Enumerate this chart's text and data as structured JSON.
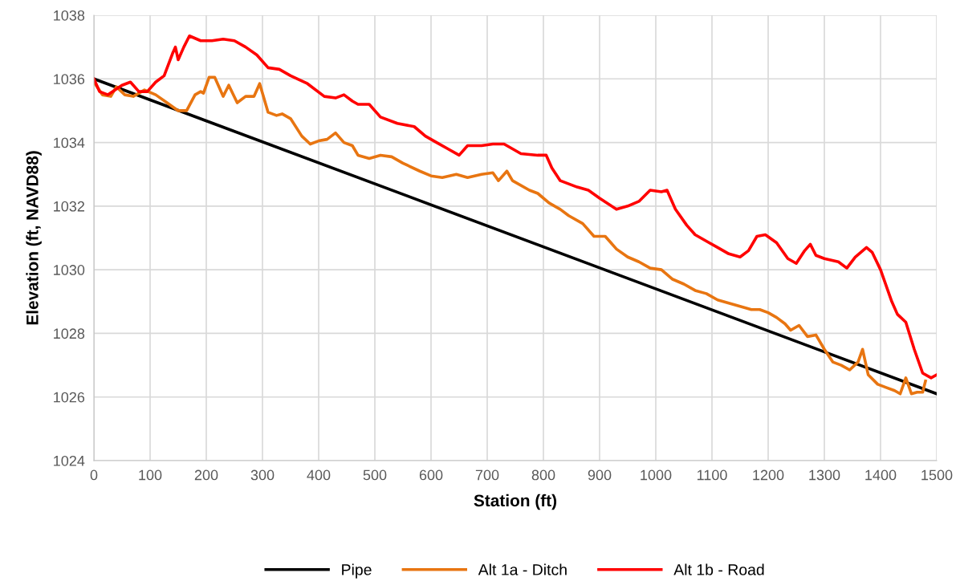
{
  "chart_data": {
    "type": "line",
    "xlabel": "Station (ft)",
    "ylabel": "Elevation (ft, NAVD88)",
    "xlim": [
      0,
      1500
    ],
    "xticks": [
      0,
      100,
      200,
      300,
      400,
      500,
      600,
      700,
      800,
      900,
      1000,
      1100,
      1200,
      1300,
      1400,
      1500
    ],
    "ylim": [
      1024,
      1038
    ],
    "yticks": [
      1024,
      1026,
      1028,
      1030,
      1032,
      1034,
      1036,
      1038
    ],
    "grid": true,
    "legend": "bottom",
    "marker": "none",
    "line_style": "solid",
    "series": [
      {
        "name": "Pipe",
        "color": "#000000",
        "x": [
          0,
          1500
        ],
        "values": [
          1036,
          1026.1
        ]
      },
      {
        "name": "Alt 1a - Ditch",
        "color": "#e87511",
        "x": [
          0,
          15,
          30,
          40,
          55,
          70,
          90,
          110,
          130,
          150,
          165,
          180,
          190,
          195,
          205,
          215,
          230,
          240,
          255,
          270,
          285,
          295,
          310,
          325,
          335,
          350,
          370,
          385,
          400,
          415,
          430,
          445,
          460,
          470,
          490,
          510,
          530,
          550,
          580,
          600,
          620,
          645,
          665,
          690,
          710,
          720,
          735,
          745,
          775,
          790,
          810,
          830,
          845,
          870,
          890,
          910,
          930,
          950,
          970,
          990,
          1010,
          1030,
          1050,
          1070,
          1090,
          1110,
          1130,
          1150,
          1170,
          1185,
          1200,
          1215,
          1230,
          1240,
          1255,
          1270,
          1285,
          1300,
          1315,
          1330,
          1345,
          1360,
          1368,
          1378,
          1395,
          1410,
          1425,
          1435,
          1445,
          1455,
          1465,
          1475,
          1480
        ],
        "values": [
          1035.9,
          1035.5,
          1035.45,
          1035.75,
          1035.5,
          1035.45,
          1035.65,
          1035.5,
          1035.25,
          1035.0,
          1035.0,
          1035.5,
          1035.6,
          1035.55,
          1036.05,
          1036.05,
          1035.45,
          1035.8,
          1035.25,
          1035.45,
          1035.45,
          1035.85,
          1034.95,
          1034.85,
          1034.9,
          1034.75,
          1034.2,
          1033.95,
          1034.05,
          1034.1,
          1034.3,
          1034.0,
          1033.9,
          1033.6,
          1033.5,
          1033.6,
          1033.55,
          1033.35,
          1033.1,
          1032.95,
          1032.9,
          1033.0,
          1032.9,
          1033.0,
          1033.05,
          1032.8,
          1033.1,
          1032.8,
          1032.5,
          1032.4,
          1032.1,
          1031.9,
          1031.7,
          1031.45,
          1031.05,
          1031.05,
          1030.65,
          1030.4,
          1030.25,
          1030.05,
          1030.0,
          1029.7,
          1029.55,
          1029.35,
          1029.25,
          1029.05,
          1028.95,
          1028.85,
          1028.75,
          1028.75,
          1028.65,
          1028.5,
          1028.3,
          1028.1,
          1028.25,
          1027.9,
          1027.95,
          1027.5,
          1027.1,
          1027.0,
          1026.85,
          1027.1,
          1027.5,
          1026.7,
          1026.4,
          1026.3,
          1026.2,
          1026.1,
          1026.6,
          1026.1,
          1026.15,
          1026.15,
          1026.5
        ]
      },
      {
        "name": "Alt 1b - Road",
        "color": "#ff0000",
        "x": [
          0,
          10,
          25,
          50,
          65,
          80,
          95,
          110,
          125,
          140,
          145,
          150,
          160,
          170,
          190,
          210,
          230,
          250,
          270,
          290,
          310,
          330,
          350,
          380,
          410,
          430,
          445,
          460,
          470,
          490,
          510,
          540,
          570,
          590,
          610,
          630,
          650,
          665,
          690,
          710,
          730,
          760,
          790,
          805,
          815,
          830,
          860,
          880,
          900,
          930,
          950,
          970,
          990,
          1010,
          1020,
          1035,
          1055,
          1070,
          1090,
          1110,
          1130,
          1150,
          1165,
          1180,
          1195,
          1215,
          1235,
          1250,
          1265,
          1275,
          1285,
          1300,
          1325,
          1340,
          1355,
          1375,
          1385,
          1400,
          1420,
          1430,
          1445,
          1460,
          1475,
          1490,
          1500
        ],
        "values": [
          1036.0,
          1035.6,
          1035.5,
          1035.8,
          1035.9,
          1035.6,
          1035.6,
          1035.9,
          1036.1,
          1036.8,
          1037.0,
          1036.6,
          1037.0,
          1037.35,
          1037.2,
          1037.2,
          1037.25,
          1037.2,
          1037.0,
          1036.75,
          1036.35,
          1036.3,
          1036.1,
          1035.85,
          1035.45,
          1035.4,
          1035.5,
          1035.3,
          1035.2,
          1035.2,
          1034.8,
          1034.6,
          1034.5,
          1034.2,
          1034.0,
          1033.8,
          1033.6,
          1033.9,
          1033.9,
          1033.95,
          1033.95,
          1033.65,
          1033.6,
          1033.6,
          1033.2,
          1032.8,
          1032.6,
          1032.5,
          1032.25,
          1031.9,
          1032.0,
          1032.15,
          1032.5,
          1032.45,
          1032.5,
          1031.9,
          1031.4,
          1031.1,
          1030.9,
          1030.7,
          1030.5,
          1030.4,
          1030.6,
          1031.05,
          1031.1,
          1030.85,
          1030.35,
          1030.2,
          1030.6,
          1030.8,
          1030.45,
          1030.35,
          1030.25,
          1030.05,
          1030.4,
          1030.7,
          1030.55,
          1030.0,
          1029.0,
          1028.6,
          1028.35,
          1027.5,
          1026.75,
          1026.6,
          1026.7
        ]
      }
    ]
  }
}
